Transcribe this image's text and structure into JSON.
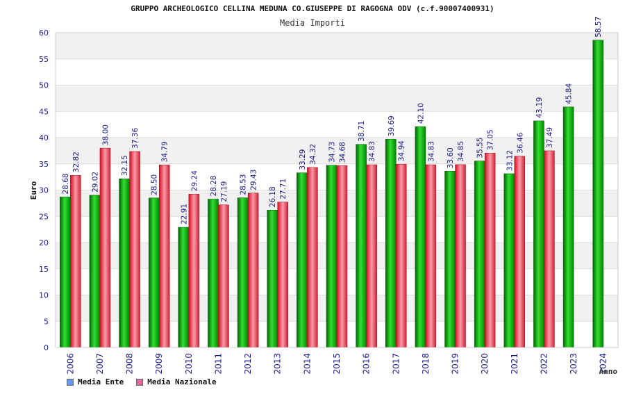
{
  "chart_data": {
    "type": "bar",
    "title": "GRUPPO ARCHEOLOGICO CELLINA MEDUNA CO.GIUSEPPE DI RAGOGNA ODV (c.f.90007400931)",
    "subtitle": "Media Importi",
    "xlabel": "Anno",
    "ylabel": "Euro",
    "ylim": [
      0,
      60
    ],
    "yticks": [
      0,
      5,
      10,
      15,
      20,
      25,
      30,
      35,
      40,
      45,
      50,
      55,
      60
    ],
    "grid": true,
    "legend_position": "bottom-left",
    "categories": [
      "2006",
      "2007",
      "2008",
      "2009",
      "2010",
      "2011",
      "2012",
      "2013",
      "2014",
      "2015",
      "2016",
      "2017",
      "2018",
      "2019",
      "2020",
      "2021",
      "2022",
      "2023",
      "2024"
    ],
    "series": [
      {
        "name": "Media Ente",
        "color": "#00aa00",
        "legend_color": "#6699ee",
        "values": [
          28.68,
          29.02,
          32.15,
          28.5,
          22.91,
          28.28,
          28.53,
          26.18,
          33.29,
          34.73,
          38.71,
          39.69,
          42.1,
          33.6,
          35.55,
          33.12,
          43.19,
          45.84,
          58.57
        ],
        "labels": [
          "28.68",
          "29.02",
          "32.15",
          "28.50",
          "22.91",
          "28.28",
          "28.53",
          "26.18",
          "33.29",
          "34.73",
          "38.71",
          "39.69",
          "42.10",
          "33.60",
          "35.55",
          "33.12",
          "43.19",
          "45.84",
          "58.57"
        ]
      },
      {
        "name": "Media Nazionale",
        "color": "#dd2233",
        "legend_color": "#e06699",
        "values": [
          32.82,
          38.0,
          37.36,
          34.79,
          29.24,
          27.19,
          29.43,
          27.71,
          34.32,
          34.68,
          34.83,
          34.94,
          34.83,
          34.85,
          37.05,
          36.46,
          37.49,
          null,
          null
        ],
        "labels": [
          "32.82",
          "38.00",
          "37.36",
          "34.79",
          "29.24",
          "27.19",
          "29.43",
          "27.71",
          "34.32",
          "34.68",
          "34.83",
          "34.94",
          "34.83",
          "34.85",
          "37.05",
          "36.46",
          "37.49",
          "",
          ""
        ]
      }
    ]
  }
}
